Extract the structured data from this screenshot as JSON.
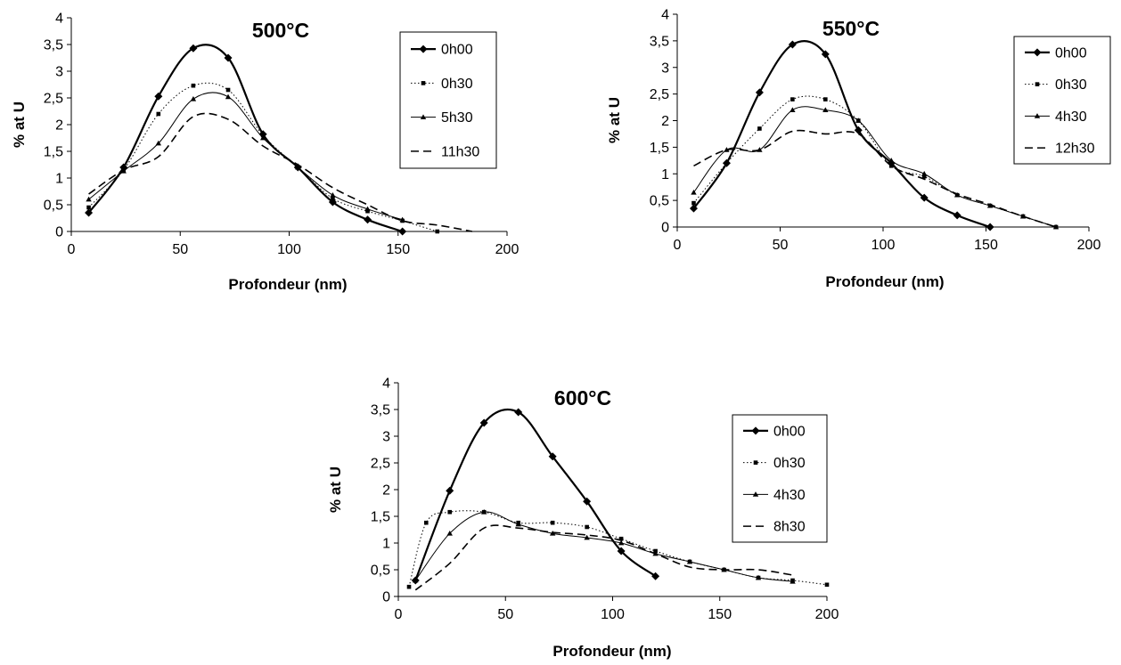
{
  "chart_data": [
    {
      "type": "line",
      "title": "500°C",
      "xlabel": "Profondeur (nm)",
      "ylabel": "% at U",
      "xlim": [
        0,
        200
      ],
      "ylim": [
        0,
        4
      ],
      "xticks": [
        "0",
        "50",
        "100",
        "150",
        "200"
      ],
      "yticks": [
        "0",
        "0,5",
        "1",
        "1,5",
        "2",
        "2,5",
        "3",
        "3,5",
        "4"
      ],
      "grid": false,
      "legend_position": "top-right",
      "series": [
        {
          "name": "0h00",
          "style": "solid-bold",
          "marker": "diamond",
          "x": [
            8,
            24,
            40,
            56,
            72,
            88,
            104,
            120,
            136,
            152
          ],
          "y": [
            0.35,
            1.2,
            2.53,
            3.43,
            3.25,
            1.82,
            1.2,
            0.55,
            0.22,
            0.0
          ]
        },
        {
          "name": "0h30",
          "style": "dotted",
          "marker": "square",
          "x": [
            8,
            24,
            40,
            56,
            72,
            88,
            104,
            120,
            136,
            152,
            168
          ],
          "y": [
            0.45,
            1.15,
            2.2,
            2.73,
            2.65,
            1.8,
            1.2,
            0.62,
            0.38,
            0.2,
            0.0
          ]
        },
        {
          "name": "5h30",
          "style": "solid-thin",
          "marker": "triangle",
          "x": [
            8,
            24,
            40,
            56,
            72,
            88,
            104,
            120,
            136,
            152
          ],
          "y": [
            0.6,
            1.13,
            1.65,
            2.48,
            2.52,
            1.75,
            1.2,
            0.68,
            0.42,
            0.22
          ]
        },
        {
          "name": "11h30",
          "style": "dashed",
          "marker": "none",
          "x": [
            8,
            24,
            40,
            56,
            72,
            88,
            104,
            120,
            136,
            152,
            168,
            184
          ],
          "y": [
            0.7,
            1.15,
            1.4,
            2.15,
            2.1,
            1.6,
            1.25,
            0.82,
            0.5,
            0.2,
            0.12,
            0.0
          ]
        }
      ]
    },
    {
      "type": "line",
      "title": "550°C",
      "xlabel": "Profondeur (nm)",
      "ylabel": "% at U",
      "xlim": [
        0,
        200
      ],
      "ylim": [
        0,
        4
      ],
      "xticks": [
        "0",
        "50",
        "100",
        "150",
        "200"
      ],
      "yticks": [
        "0",
        "0,5",
        "1",
        "1,5",
        "2",
        "2,5",
        "3",
        "3,5",
        "4"
      ],
      "grid": false,
      "legend_position": "top-right",
      "series": [
        {
          "name": "0h00",
          "style": "solid-bold",
          "marker": "diamond",
          "x": [
            8,
            24,
            40,
            56,
            72,
            88,
            104,
            120,
            136,
            152
          ],
          "y": [
            0.35,
            1.2,
            2.53,
            3.43,
            3.25,
            1.82,
            1.2,
            0.55,
            0.22,
            0.0
          ]
        },
        {
          "name": "0h30",
          "style": "dotted",
          "marker": "square",
          "x": [
            8,
            24,
            40,
            56,
            72,
            88,
            104,
            120,
            136,
            152,
            168,
            184
          ],
          "y": [
            0.45,
            1.2,
            1.85,
            2.4,
            2.4,
            2.0,
            1.15,
            0.95,
            0.6,
            0.4,
            0.2,
            0.0
          ]
        },
        {
          "name": "4h30",
          "style": "solid-thin",
          "marker": "triangle",
          "x": [
            8,
            24,
            40,
            56,
            72,
            88,
            104,
            120,
            136,
            152,
            168,
            184
          ],
          "y": [
            0.65,
            1.45,
            1.45,
            2.2,
            2.2,
            2.0,
            1.25,
            1.0,
            0.6,
            0.4,
            0.2,
            0.0
          ]
        },
        {
          "name": "12h30",
          "style": "dashed",
          "marker": "none",
          "x": [
            8,
            24,
            40,
            56,
            72,
            88,
            104,
            120,
            136,
            152,
            168,
            184
          ],
          "y": [
            1.15,
            1.45,
            1.45,
            1.8,
            1.75,
            1.75,
            1.15,
            0.9,
            0.62,
            0.42,
            0.2,
            0.0
          ]
        }
      ]
    },
    {
      "type": "line",
      "title": "600°C",
      "xlabel": "Profondeur (nm)",
      "ylabel": "% at U",
      "xlim": [
        0,
        200
      ],
      "ylim": [
        0,
        4
      ],
      "xticks": [
        "0",
        "50",
        "100",
        "150",
        "200"
      ],
      "yticks": [
        "0",
        "0,5",
        "1",
        "1,5",
        "2",
        "2,5",
        "3",
        "3,5",
        "4"
      ],
      "grid": false,
      "legend_position": "right",
      "series": [
        {
          "name": "0h00",
          "style": "solid-bold",
          "marker": "diamond",
          "x": [
            8,
            24,
            40,
            56,
            72,
            88,
            104,
            120
          ],
          "y": [
            0.3,
            1.98,
            3.25,
            3.45,
            2.62,
            1.78,
            0.85,
            0.38
          ]
        },
        {
          "name": "0h30",
          "style": "dotted",
          "marker": "square",
          "x": [
            5,
            13,
            24,
            40,
            56,
            72,
            88,
            104,
            120,
            136,
            152,
            168,
            184,
            200
          ],
          "y": [
            0.18,
            1.38,
            1.58,
            1.58,
            1.38,
            1.38,
            1.3,
            1.08,
            0.85,
            0.65,
            0.5,
            0.35,
            0.3,
            0.22
          ]
        },
        {
          "name": "4h30",
          "style": "solid-thin",
          "marker": "triangle",
          "x": [
            8,
            24,
            40,
            56,
            72,
            88,
            104,
            120,
            136,
            152,
            168,
            184
          ],
          "y": [
            0.3,
            1.18,
            1.58,
            1.35,
            1.18,
            1.1,
            1.0,
            0.8,
            0.65,
            0.5,
            0.35,
            0.28
          ]
        },
        {
          "name": "8h30",
          "style": "dashed",
          "marker": "none",
          "x": [
            8,
            24,
            40,
            56,
            72,
            88,
            104,
            120,
            136,
            152,
            168,
            184
          ],
          "y": [
            0.12,
            0.62,
            1.28,
            1.28,
            1.2,
            1.15,
            1.05,
            0.8,
            0.55,
            0.5,
            0.5,
            0.4
          ]
        }
      ]
    }
  ]
}
